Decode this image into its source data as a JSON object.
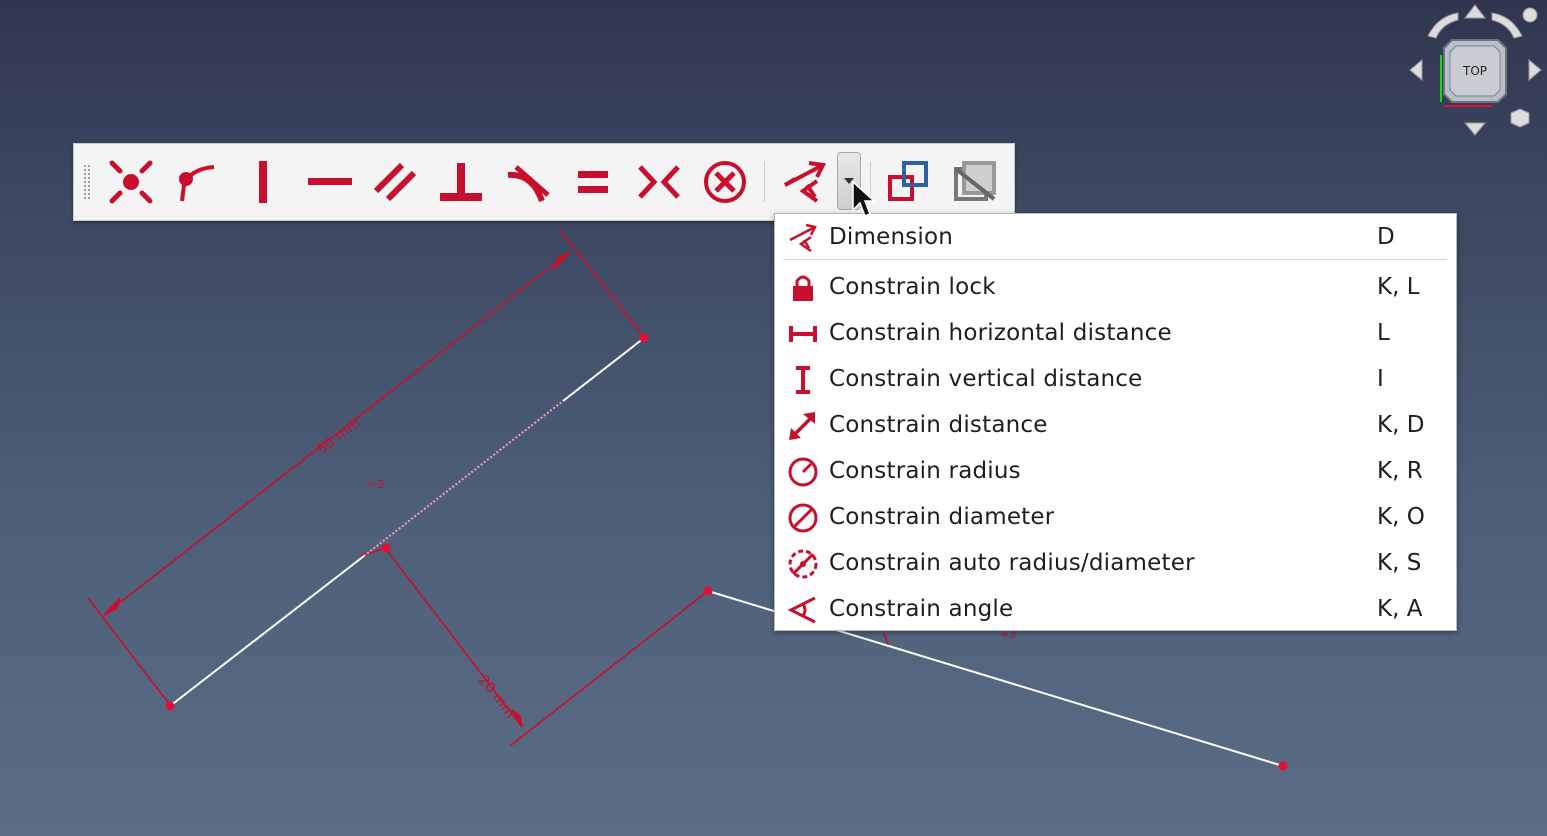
{
  "viewport": {
    "dimension_labels": [
      "50 mm",
      "20 mm"
    ],
    "equal_markers": [
      "=3",
      "=3"
    ],
    "colors": {
      "constraint": "#c8102e",
      "geometry": "#ffffff"
    }
  },
  "navcube": {
    "face_label": "TOP"
  },
  "toolbar": {
    "buttons": [
      {
        "icon": "coincident-icon"
      },
      {
        "icon": "point-on-object-icon"
      },
      {
        "icon": "vertical-icon"
      },
      {
        "icon": "horizontal-icon"
      },
      {
        "icon": "parallel-icon"
      },
      {
        "icon": "perpendicular-icon"
      },
      {
        "icon": "tangent-icon"
      },
      {
        "icon": "equal-icon"
      },
      {
        "icon": "symmetric-icon"
      },
      {
        "icon": "block-icon"
      },
      {
        "icon": "dimension-icon"
      },
      {
        "icon": "toggle-driving-icon"
      },
      {
        "icon": "toggle-active-icon"
      }
    ]
  },
  "dropdown_menu": {
    "items": [
      {
        "label": "Dimension",
        "shortcut": "D",
        "icon": "dimension-icon"
      },
      {
        "label": "Constrain lock",
        "shortcut": "K, L",
        "icon": "lock-icon"
      },
      {
        "label": "Constrain horizontal distance",
        "shortcut": "L",
        "icon": "horizontal-distance-icon"
      },
      {
        "label": "Constrain vertical distance",
        "shortcut": "I",
        "icon": "vertical-distance-icon"
      },
      {
        "label": "Constrain distance",
        "shortcut": "K, D",
        "icon": "distance-icon"
      },
      {
        "label": "Constrain radius",
        "shortcut": "K, R",
        "icon": "radius-icon"
      },
      {
        "label": "Constrain diameter",
        "shortcut": "K, O",
        "icon": "diameter-icon"
      },
      {
        "label": "Constrain auto radius/diameter",
        "shortcut": "K, S",
        "icon": "auto-radius-diameter-icon"
      },
      {
        "label": "Constrain angle",
        "shortcut": "K, A",
        "icon": "angle-icon"
      }
    ]
  }
}
